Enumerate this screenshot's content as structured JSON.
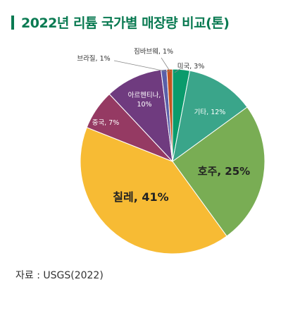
{
  "title": "2022년 리튬 국가별 매장량 비교(톤)",
  "source": "자료 : USGS(2022)",
  "chart_data": {
    "type": "pie",
    "title": "2022년 리튬 국가별 매장량 비교(톤)",
    "slices": [
      {
        "label": "미국, 3%",
        "value": 3,
        "color": "#0a9b6c"
      },
      {
        "label": "기타, 12%",
        "value": 12,
        "color": "#3aa58a"
      },
      {
        "label": "호주, 25%",
        "value": 25,
        "color": "#79ad54"
      },
      {
        "label": "칠레, 41%",
        "value": 41,
        "color": "#f7bb34"
      },
      {
        "label": "중국, 7%",
        "value": 7,
        "color": "#953a63"
      },
      {
        "label": "아르헨티나, 10%",
        "value": 10,
        "color": "#6f3b7f"
      },
      {
        "label": "브라질, 1%",
        "value": 1,
        "color": "#5a5fa8"
      },
      {
        "label": "짐바브웨, 1%",
        "value": 1,
        "color": "#c4541f"
      }
    ]
  }
}
